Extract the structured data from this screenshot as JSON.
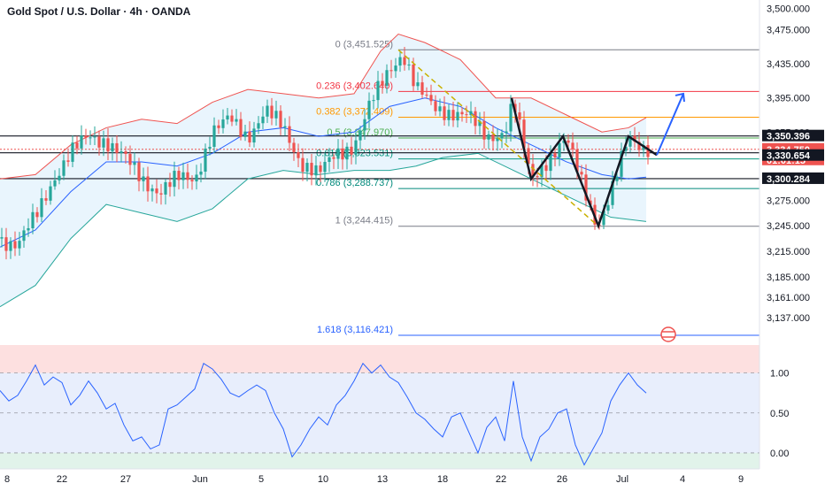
{
  "header": {
    "title": "Gold Spot / U.S. Dollar · 4h · OANDA"
  },
  "colors": {
    "up": "#26a69a",
    "down": "#ef5350",
    "bb_upper": "#ef5350",
    "bb_lower": "#26a69a",
    "bb_basis": "#2962ff",
    "bb_fill": "#e3f2fd",
    "rsi_line": "#2962ff",
    "projection": "#2962ff",
    "pattern": "#131722",
    "trend": "#c9b000",
    "price_tag": "#ef5350",
    "level_tag": "#131722"
  },
  "chart_data": [
    {
      "type": "candlestick",
      "title": "Gold Spot / U.S. Dollar · 4h · OANDA",
      "ylim": [
        3105,
        3510
      ],
      "y_ticks": [
        "3,500.000",
        "3,475.000",
        "3,435.000",
        "3,395.000",
        "3,355.000",
        "3,330.000",
        "3,300.000",
        "3,275.000",
        "3,245.000",
        "3,215.000",
        "3,185.000",
        "3,161.000",
        "3,137.000"
      ],
      "y_tick_values": [
        3500,
        3475,
        3435,
        3395,
        3355,
        3330,
        3300,
        3275,
        3245,
        3215,
        3185,
        3161,
        3137
      ],
      "x_ticks": [
        "8",
        "22",
        "27",
        "Jun",
        "5",
        "10",
        "13",
        "18",
        "22",
        "26",
        "Jul",
        "4",
        "9"
      ],
      "fib_levels": [
        {
          "label": "0 (3,451.525)",
          "value": 3451.525,
          "color": "#787b86"
        },
        {
          "label": "0.236 (3,402.640)",
          "value": 3402.64,
          "color": "#f23645"
        },
        {
          "label": "0.382 (3,372.409)",
          "value": 3372.409,
          "color": "#ff9800"
        },
        {
          "label": "0.5 (3,347.970)",
          "value": 3347.97,
          "color": "#4caf50"
        },
        {
          "label": "0.618 (3,323.531)",
          "value": 3323.531,
          "color": "#089981"
        },
        {
          "label": "0.786 (3,288.737)",
          "value": 3288.737,
          "color": "#00897b"
        },
        {
          "label": "1 (3,244.415)",
          "value": 3244.415,
          "color": "#787b86"
        },
        {
          "label": "1.618 (3,116.421)",
          "value": 3116.421,
          "color": "#2962ff"
        }
      ],
      "horizontal_levels": [
        3350.396,
        3330.654,
        3300.284
      ],
      "price_labels": [
        {
          "text": "3,350.396",
          "kind": "level"
        },
        {
          "text": "3,334.750",
          "kind": "current"
        },
        {
          "text": "01:01:15",
          "kind": "current"
        },
        {
          "text": "3,330.654",
          "kind": "level"
        },
        {
          "text": "3,300.284",
          "kind": "level"
        }
      ],
      "series": [
        {
          "name": "close",
          "points": [
            [
              0,
              3230
            ],
            [
              20,
              3222
            ],
            [
              40,
              3255
            ],
            [
              60,
              3300
            ],
            [
              80,
              3330
            ],
            [
              100,
              3350
            ],
            [
              120,
              3345
            ],
            [
              140,
              3325
            ],
            [
              160,
              3300
            ],
            [
              180,
              3285
            ],
            [
              200,
              3300
            ],
            [
              220,
              3300
            ],
            [
              240,
              3355
            ],
            [
              260,
              3370
            ],
            [
              280,
              3350
            ],
            [
              300,
              3380
            ],
            [
              320,
              3360
            ],
            [
              340,
              3320
            ],
            [
              360,
              3305
            ],
            [
              380,
              3330
            ],
            [
              400,
              3340
            ],
            [
              420,
              3390
            ],
            [
              440,
              3430
            ],
            [
              455,
              3448
            ],
            [
              470,
              3405
            ],
            [
              490,
              3385
            ],
            [
              510,
              3378
            ],
            [
              530,
              3372
            ],
            [
              550,
              3350
            ],
            [
              570,
              3355
            ],
            [
              580,
              3390
            ],
            [
              600,
              3300
            ],
            [
              620,
              3325
            ],
            [
              640,
              3345
            ],
            [
              660,
              3290
            ],
            [
              675,
              3245
            ],
            [
              690,
              3280
            ],
            [
              710,
              3350
            ],
            [
              725,
              3340
            ],
            [
              735,
              3335
            ]
          ]
        },
        {
          "name": "bb_upper",
          "points": [
            [
              0,
              3300
            ],
            [
              40,
              3305
            ],
            [
              80,
              3340
            ],
            [
              120,
              3360
            ],
            [
              160,
              3370
            ],
            [
              200,
              3365
            ],
            [
              240,
              3390
            ],
            [
              280,
              3405
            ],
            [
              320,
              3400
            ],
            [
              360,
              3395
            ],
            [
              400,
              3400
            ],
            [
              430,
              3450
            ],
            [
              450,
              3470
            ],
            [
              480,
              3460
            ],
            [
              520,
              3440
            ],
            [
              560,
              3395
            ],
            [
              600,
              3395
            ],
            [
              640,
              3375
            ],
            [
              680,
              3355
            ],
            [
              710,
              3360
            ],
            [
              730,
              3372
            ]
          ]
        },
        {
          "name": "bb_basis",
          "points": [
            [
              0,
              3220
            ],
            [
              40,
              3240
            ],
            [
              80,
              3285
            ],
            [
              120,
              3320
            ],
            [
              160,
              3320
            ],
            [
              200,
              3315
            ],
            [
              240,
              3330
            ],
            [
              280,
              3355
            ],
            [
              320,
              3360
            ],
            [
              360,
              3350
            ],
            [
              400,
              3355
            ],
            [
              440,
              3385
            ],
            [
              480,
              3395
            ],
            [
              520,
              3385
            ],
            [
              560,
              3360
            ],
            [
              600,
              3340
            ],
            [
              640,
              3320
            ],
            [
              680,
              3305
            ],
            [
              710,
              3300
            ],
            [
              730,
              3302
            ]
          ]
        },
        {
          "name": "bb_lower",
          "points": [
            [
              0,
              3150
            ],
            [
              40,
              3175
            ],
            [
              80,
              3230
            ],
            [
              120,
              3270
            ],
            [
              160,
              3260
            ],
            [
              200,
              3250
            ],
            [
              240,
              3265
            ],
            [
              280,
              3300
            ],
            [
              320,
              3310
            ],
            [
              360,
              3305
            ],
            [
              400,
              3310
            ],
            [
              440,
              3310
            ],
            [
              470,
              3315
            ],
            [
              500,
              3325
            ],
            [
              540,
              3330
            ],
            [
              580,
              3310
            ],
            [
              620,
              3290
            ],
            [
              660,
              3270
            ],
            [
              690,
              3255
            ],
            [
              730,
              3250
            ]
          ]
        },
        {
          "name": "pattern",
          "points": [
            [
              578,
              3395
            ],
            [
              600,
              3300
            ],
            [
              636,
              3350
            ],
            [
              676,
              3245
            ],
            [
              710,
              3350
            ],
            [
              742,
              3328
            ]
          ]
        },
        {
          "name": "projection",
          "points": [
            [
              742,
              3328
            ],
            [
              772,
              3400
            ]
          ]
        }
      ]
    },
    {
      "type": "line",
      "ylim": [
        -0.2,
        1.35
      ],
      "y_ticks": [
        "1.00",
        "0.50",
        "0.00"
      ],
      "y_tick_values": [
        1.0,
        0.5,
        0.0
      ],
      "series": [
        {
          "name": "oscillator",
          "points": [
            [
              0,
              0.78
            ],
            [
              10,
              0.65
            ],
            [
              20,
              0.72
            ],
            [
              30,
              0.9
            ],
            [
              40,
              1.1
            ],
            [
              50,
              0.85
            ],
            [
              60,
              0.95
            ],
            [
              70,
              0.88
            ],
            [
              80,
              0.6
            ],
            [
              90,
              0.72
            ],
            [
              100,
              0.9
            ],
            [
              110,
              0.75
            ],
            [
              120,
              0.55
            ],
            [
              130,
              0.62
            ],
            [
              140,
              0.35
            ],
            [
              150,
              0.15
            ],
            [
              160,
              0.2
            ],
            [
              170,
              0.05
            ],
            [
              180,
              0.1
            ],
            [
              190,
              0.55
            ],
            [
              200,
              0.6
            ],
            [
              210,
              0.7
            ],
            [
              220,
              0.8
            ],
            [
              230,
              1.12
            ],
            [
              240,
              1.05
            ],
            [
              250,
              0.92
            ],
            [
              260,
              0.75
            ],
            [
              270,
              0.7
            ],
            [
              280,
              0.78
            ],
            [
              290,
              0.85
            ],
            [
              300,
              0.78
            ],
            [
              310,
              0.5
            ],
            [
              320,
              0.3
            ],
            [
              330,
              -0.05
            ],
            [
              340,
              0.1
            ],
            [
              350,
              0.3
            ],
            [
              360,
              0.45
            ],
            [
              370,
              0.35
            ],
            [
              380,
              0.6
            ],
            [
              390,
              0.72
            ],
            [
              400,
              0.9
            ],
            [
              410,
              1.12
            ],
            [
              420,
              1.0
            ],
            [
              430,
              1.1
            ],
            [
              440,
              0.95
            ],
            [
              450,
              0.88
            ],
            [
              460,
              0.7
            ],
            [
              470,
              0.5
            ],
            [
              480,
              0.42
            ],
            [
              490,
              0.3
            ],
            [
              500,
              0.2
            ],
            [
              510,
              0.45
            ],
            [
              520,
              0.5
            ],
            [
              530,
              0.25
            ],
            [
              540,
              0.0
            ],
            [
              550,
              0.32
            ],
            [
              560,
              0.45
            ],
            [
              570,
              0.15
            ],
            [
              580,
              0.9
            ],
            [
              590,
              0.2
            ],
            [
              600,
              -0.1
            ],
            [
              610,
              0.2
            ],
            [
              620,
              0.3
            ],
            [
              630,
              0.5
            ],
            [
              640,
              0.55
            ],
            [
              650,
              0.1
            ],
            [
              660,
              -0.15
            ],
            [
              670,
              0.05
            ],
            [
              680,
              0.25
            ],
            [
              690,
              0.65
            ],
            [
              700,
              0.85
            ],
            [
              710,
              1.0
            ],
            [
              720,
              0.85
            ],
            [
              730,
              0.75
            ]
          ]
        }
      ]
    }
  ]
}
